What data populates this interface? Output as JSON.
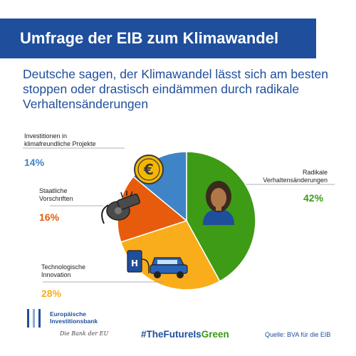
{
  "header": {
    "title": "Umfrage der EIB zum Klimawandel"
  },
  "subtitle": "Deutsche sagen, der Klimawandel lässt sich am besten stoppen oder drastisch eindämmen durch radikale Verhaltensänderungen",
  "chart_data": {
    "type": "pie",
    "slices": [
      {
        "label": "Radikale Verhaltensänderungen",
        "value": 42,
        "pct_label": "42%",
        "color": "#3d9b15",
        "icon": "person-icon"
      },
      {
        "label": "Technologische Innovation",
        "value": 28,
        "pct_label": "28%",
        "color": "#f9ad1a",
        "icon": "car-charging-icon"
      },
      {
        "label": "Staatliche Vorschriften",
        "value": 16,
        "pct_label": "16%",
        "color": "#e65c0c",
        "icon": "whistle-icon"
      },
      {
        "label": "Investitionen in klimafreundliche Projekte",
        "value": 14,
        "pct_label": "14%",
        "color": "#3f84c6",
        "icon": "euro-coin-icon"
      }
    ],
    "labels": {
      "radikal_line1": "Radikale",
      "radikal_line2": "Verhaltensänderungen",
      "tech_line1": "Technologische",
      "tech_line2": "Innovation",
      "staat_line1": "Staatliche",
      "staat_line2": "Vorschriften",
      "invest_line1": "Investitionen in",
      "invest_line2": "klimafreundliche Projekte"
    }
  },
  "footer": {
    "logo_line1": "Europäische",
    "logo_line2": "Investitionsbank",
    "tagline": "Die Bank der EU",
    "hashtag_part1": "#TheFutureIs",
    "hashtag_part2": "Green",
    "source": "Quelle: BVA für die EIB"
  },
  "colors": {
    "brand_blue": "#1f4e9c",
    "green": "#3d9b15"
  }
}
